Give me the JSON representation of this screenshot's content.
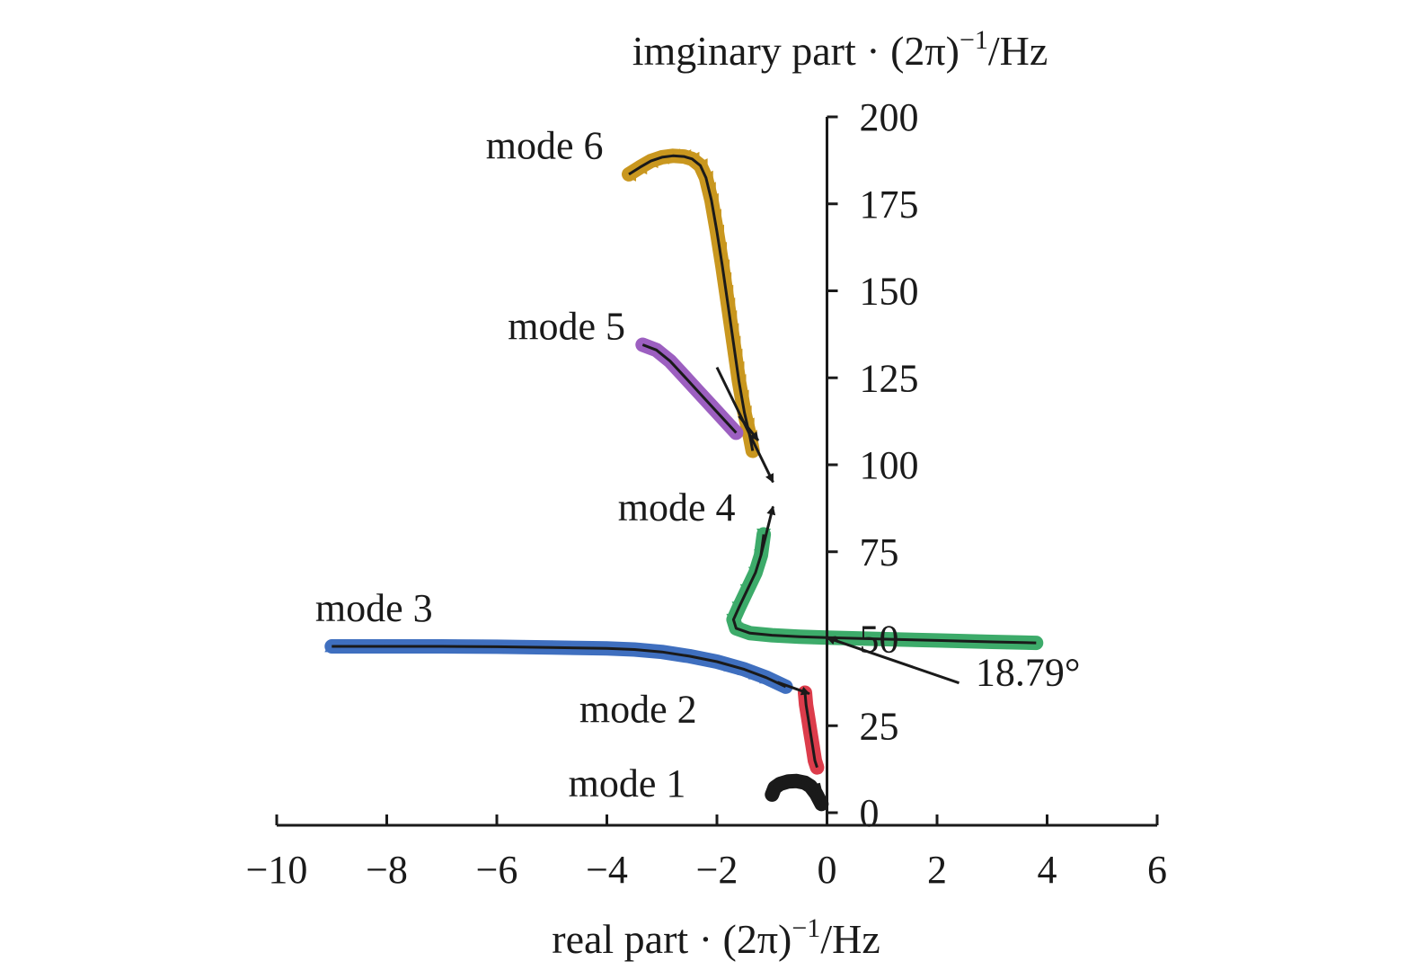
{
  "chart_data": {
    "type": "line",
    "title": "",
    "xlabel": "real part · (2π)",
    "xlabel_sup": "−1",
    "xlabel_unit": "/Hz",
    "ylabel": "imginary part · (2π)",
    "ylabel_sup": "−1",
    "ylabel_unit": "/Hz",
    "xlim": [
      -10,
      6
    ],
    "ylim": [
      0,
      200
    ],
    "x_ticks": [
      -10,
      -8,
      -6,
      -4,
      -2,
      0,
      2,
      4,
      6
    ],
    "x_tick_labels": [
      "−10",
      "−8",
      "−6",
      "−4",
      "−2",
      "0",
      "2",
      "4",
      "6"
    ],
    "y_ticks": [
      0,
      25,
      50,
      75,
      100,
      125,
      150,
      175,
      200
    ],
    "y_tick_labels": [
      "0",
      "25",
      "50",
      "75",
      "100",
      "125",
      "150",
      "175",
      "200"
    ],
    "grid": false,
    "legend": "none",
    "series": [
      {
        "name": "mode 6",
        "color": "#c9971f",
        "marker": "triangle-left",
        "points": [
          [
            -3.6,
            183.5
          ],
          [
            -3.4,
            185.5
          ],
          [
            -3.2,
            187.3
          ],
          [
            -3.0,
            188.4
          ],
          [
            -2.8,
            188.8
          ],
          [
            -2.6,
            188.6
          ],
          [
            -2.45,
            187.9
          ],
          [
            -2.3,
            186.0
          ],
          [
            -2.2,
            182.5
          ],
          [
            -2.1,
            176
          ],
          [
            -2.0,
            167
          ],
          [
            -1.9,
            157
          ],
          [
            -1.8,
            146
          ],
          [
            -1.7,
            135
          ],
          [
            -1.6,
            124
          ],
          [
            -1.5,
            115
          ],
          [
            -1.4,
            108
          ],
          [
            -1.35,
            104
          ]
        ]
      },
      {
        "name": "mode 5",
        "color": "#9c5fc0",
        "marker": "circle",
        "points": [
          [
            -3.35,
            134.5
          ],
          [
            -3.1,
            133.0
          ],
          [
            -2.85,
            129.8
          ],
          [
            -2.6,
            125.5
          ],
          [
            -2.35,
            121.2
          ],
          [
            -2.1,
            116.9
          ],
          [
            -1.85,
            112.6
          ],
          [
            -1.65,
            109.2
          ]
        ]
      },
      {
        "name": "mode 4",
        "color": "#3dab6a",
        "marker": "triangle-down",
        "points": [
          [
            -1.15,
            80
          ],
          [
            -1.2,
            74
          ],
          [
            -1.3,
            69
          ],
          [
            -1.45,
            64
          ],
          [
            -1.6,
            59
          ],
          [
            -1.7,
            55.5
          ],
          [
            -1.65,
            53
          ],
          [
            -1.4,
            51.6
          ],
          [
            -1.0,
            51.0
          ],
          [
            -0.5,
            50.6
          ],
          [
            0.0,
            50.3
          ],
          [
            1.0,
            49.9
          ],
          [
            2.0,
            49.5
          ],
          [
            3.0,
            49.1
          ],
          [
            3.8,
            48.8
          ]
        ]
      },
      {
        "name": "mode 3",
        "color": "#3f6fbf",
        "marker": "triangle-up",
        "points": [
          [
            -9.0,
            47.8
          ],
          [
            -8.0,
            47.8
          ],
          [
            -7.0,
            47.8
          ],
          [
            -6.0,
            47.7
          ],
          [
            -5.0,
            47.5
          ],
          [
            -4.0,
            47.2
          ],
          [
            -3.5,
            46.9
          ],
          [
            -3.0,
            46.2
          ],
          [
            -2.5,
            45.0
          ],
          [
            -2.0,
            43.4
          ],
          [
            -1.5,
            41.2
          ],
          [
            -1.1,
            38.8
          ],
          [
            -0.75,
            36.2
          ]
        ]
      },
      {
        "name": "mode 2",
        "color": "#dc3c4b",
        "marker": "circle",
        "points": [
          [
            -0.4,
            34.5
          ],
          [
            -0.38,
            31
          ],
          [
            -0.34,
            27
          ],
          [
            -0.3,
            23
          ],
          [
            -0.26,
            19
          ],
          [
            -0.22,
            15
          ],
          [
            -0.18,
            13
          ]
        ]
      },
      {
        "name": "mode 1",
        "color": "#1a1a1a",
        "marker": "circle",
        "points": [
          [
            -1.0,
            5.2
          ],
          [
            -0.95,
            7.2
          ],
          [
            -0.85,
            8.3
          ],
          [
            -0.7,
            9.0
          ],
          [
            -0.55,
            9.1
          ],
          [
            -0.4,
            8.6
          ],
          [
            -0.3,
            7.6
          ],
          [
            -0.2,
            5.5
          ],
          [
            -0.1,
            2.5
          ]
        ]
      }
    ],
    "mode_labels": [
      {
        "series": "mode 6",
        "text": "mode 6",
        "x": -6.2,
        "y": 188
      },
      {
        "series": "mode 5",
        "text": "mode 5",
        "x": -5.8,
        "y": 136
      },
      {
        "series": "mode 4",
        "text": "mode 4",
        "x": -3.8,
        "y": 84
      },
      {
        "series": "mode 3",
        "text": "mode 3",
        "x": -9.3,
        "y": 55
      },
      {
        "series": "mode 2",
        "text": "mode 2",
        "x": -4.5,
        "y": 26
      },
      {
        "series": "mode 1",
        "text": "mode 1",
        "x": -4.7,
        "y": 4.7
      }
    ],
    "arrows": [
      {
        "from": [
          -2.0,
          128.0
        ],
        "to": [
          -0.98,
          95.0
        ]
      },
      {
        "from": [
          -1.6,
          114.0
        ],
        "to": [
          -1.25,
          107.0
        ]
      },
      {
        "from": [
          -1.2,
          74.0
        ],
        "to": [
          -0.98,
          88.0
        ]
      },
      {
        "from": [
          -0.9,
          37.5
        ],
        "to": [
          -0.32,
          34.2
        ]
      },
      {
        "from": [
          -0.15,
          8.5
        ],
        "to": [
          -0.03,
          1.0
        ]
      }
    ],
    "annotations": [
      {
        "text": "18.79°",
        "x": 2.7,
        "y": 36.5,
        "arrow_to": [
          0.0,
          50.3
        ],
        "arrow_from": [
          2.4,
          37.3
        ]
      }
    ]
  }
}
